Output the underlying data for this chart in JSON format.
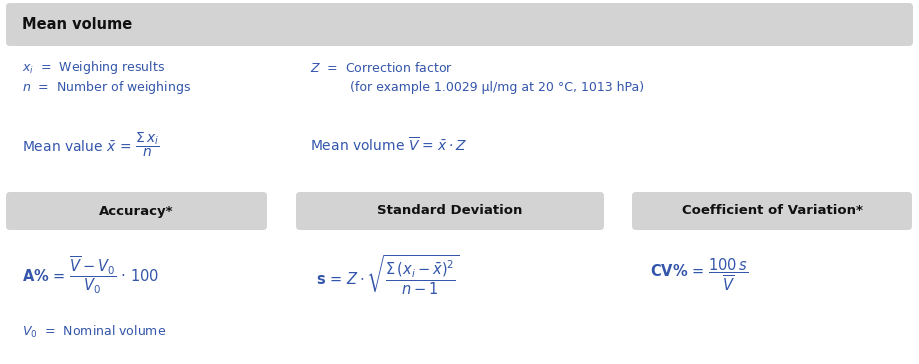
{
  "background_color": "#ffffff",
  "header_bg": "#d3d3d3",
  "header_text": "Mean volume",
  "header_fontsize": 10,
  "section_bg": "#d3d3d3",
  "text_color": "#3355aa",
  "dark_color": "#111111",
  "figsize": [
    9.19,
    3.64
  ],
  "dpi": 100,
  "sections": [
    "Accuracy*",
    "Standard Deviation",
    "Coefficient of Variation*"
  ]
}
